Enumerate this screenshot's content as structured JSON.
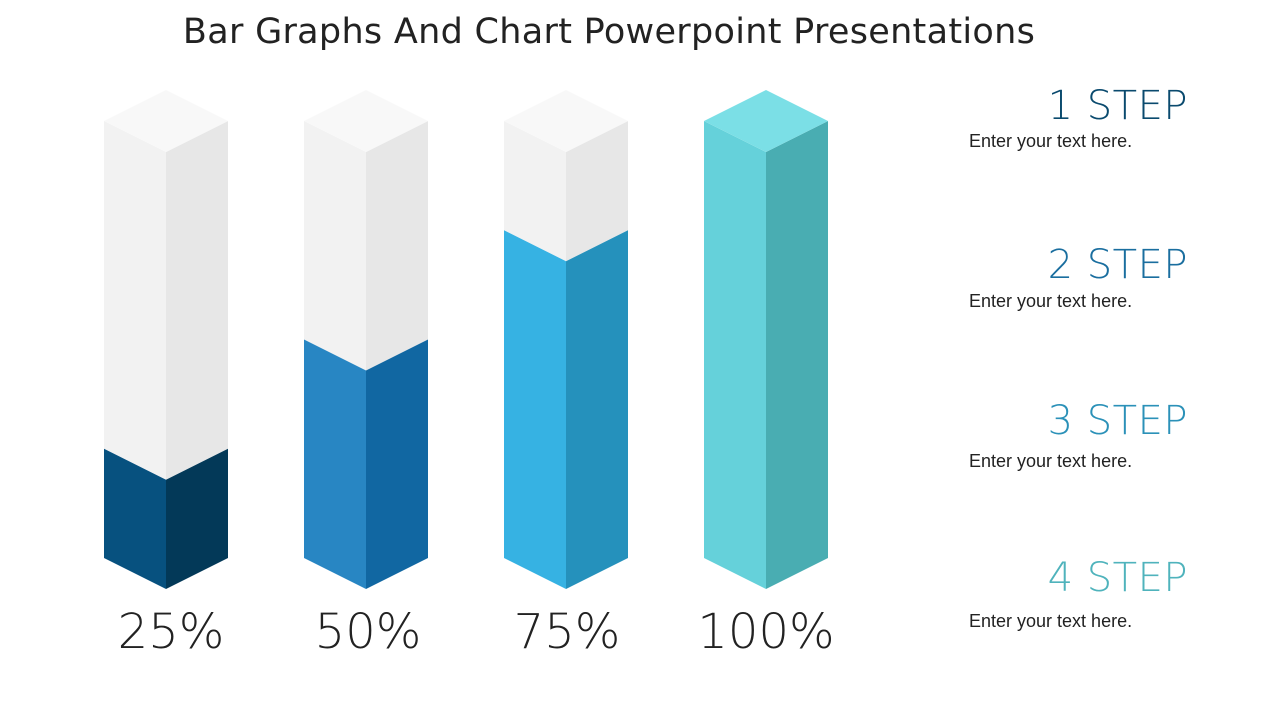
{
  "title": "Bar Graphs And Chart Powerpoint Presentations",
  "chart_data": {
    "type": "bar",
    "style": "3d-isometric-columns",
    "title": "Bar Graphs And Chart Powerpoint Presentations",
    "categories": [
      "1 STEP",
      "2 STEP",
      "3 STEP",
      "4 STEP"
    ],
    "values": [
      25,
      50,
      75,
      100
    ],
    "value_labels": [
      "25%",
      "50%",
      "75%",
      "100%"
    ],
    "ylim": [
      0,
      100
    ],
    "xlabel": "",
    "ylabel": "",
    "grid": false,
    "colors": {
      "front": [
        "#07517F",
        "#2886C3",
        "#36B2E3",
        "#65D1DA"
      ],
      "side": [
        "#033958",
        "#1167A2",
        "#2591BC",
        "#49ADB2"
      ],
      "top": [
        "#07517F",
        "#2886C3",
        "#36B2E3",
        "#7BDFE6"
      ],
      "empty_front": "#F2F2F2",
      "empty_side": "#E7E7E7",
      "empty_top": "#F8F8F8"
    }
  },
  "bars": [
    {
      "label": "25%",
      "value": 25
    },
    {
      "label": "50%",
      "value": 50
    },
    {
      "label": "75%",
      "value": 75
    },
    {
      "label": "100%",
      "value": 100
    }
  ],
  "steps": [
    {
      "title": "1 STEP",
      "text": "Enter your text here.",
      "color": "#0A4A6E"
    },
    {
      "title": "2 STEP",
      "text": "Enter your text here.",
      "color": "#1A6E9F"
    },
    {
      "title": "3 STEP",
      "text": "Enter your text here.",
      "color": "#2B91B8"
    },
    {
      "title": "4 STEP",
      "text": "Enter your text here.",
      "color": "#4FB3BC"
    }
  ]
}
